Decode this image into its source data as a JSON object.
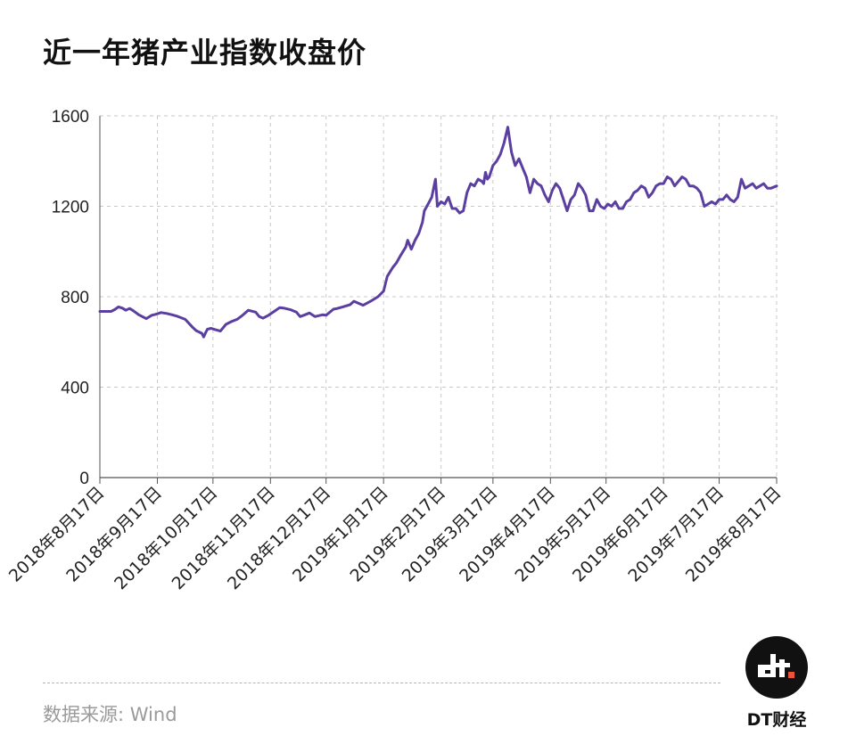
{
  "title": "近一年猪产业指数收盘价",
  "source": "数据来源: Wind",
  "brand": {
    "name": "DT财经",
    "logo_text": "dt"
  },
  "colors": {
    "line": "#5b3fa0",
    "grid": "#c9c9c9",
    "axis": "#555555",
    "logo_bg": "#111111",
    "logo_dot": "#e8543b"
  },
  "chart_data": {
    "type": "line",
    "title": "近一年猪产业指数收盘价",
    "xlabel": "",
    "ylabel": "",
    "ylim": [
      0,
      1600
    ],
    "yticks": [
      0,
      400,
      800,
      1200,
      1600
    ],
    "xlim": [
      0,
      365
    ],
    "grid": true,
    "legend": "none",
    "xtick_labels": [
      "2018年8月17日",
      "2018年9月17日",
      "2018年10月17日",
      "2018年11月17日",
      "2018年12月17日",
      "2019年1月17日",
      "2019年2月17日",
      "2019年3月17日",
      "2019年4月17日",
      "2019年5月17日",
      "2019年6月17日",
      "2019年7月17日",
      "2019年8月17日"
    ],
    "xtick_days": [
      0,
      31,
      61,
      92,
      122,
      153,
      184,
      212,
      243,
      273,
      304,
      334,
      365
    ],
    "series": [
      {
        "name": "",
        "x": [
          0,
          6,
          8,
          10,
          12,
          14,
          16,
          18,
          21,
          25,
          28,
          30,
          33,
          36,
          39,
          42,
          46,
          50,
          52,
          55,
          56,
          57,
          58,
          60,
          62,
          65,
          68,
          71,
          74,
          77,
          80,
          84,
          86,
          88,
          91,
          94,
          97,
          99,
          103,
          106,
          108,
          110,
          113,
          116,
          120,
          122,
          126,
          128,
          131,
          135,
          137,
          139,
          142,
          146,
          150,
          153,
          155,
          158,
          160,
          162,
          165,
          166,
          168,
          170,
          172,
          174,
          175,
          177,
          179,
          181,
          182,
          184,
          186,
          188,
          190,
          192,
          194,
          196,
          198,
          200,
          202,
          204,
          206,
          207,
          208,
          209,
          210,
          212,
          214,
          216,
          218,
          220,
          222,
          224,
          226,
          228,
          230,
          232,
          234,
          236,
          238,
          240,
          242,
          244,
          246,
          248,
          250,
          252,
          254,
          256,
          258,
          260,
          262,
          264,
          266,
          268,
          270,
          272,
          274,
          276,
          278,
          280,
          282,
          284,
          286,
          288,
          290,
          292,
          294,
          296,
          298,
          300,
          302,
          304,
          306,
          308,
          310,
          312,
          314,
          316,
          318,
          320,
          322,
          324,
          326,
          328,
          330,
          332,
          334,
          336,
          338,
          340,
          342,
          344,
          346,
          348,
          350,
          352,
          354,
          356,
          358,
          360,
          362,
          365
        ],
        "y": [
          735,
          735,
          743,
          755,
          750,
          740,
          748,
          738,
          720,
          703,
          718,
          722,
          730,
          726,
          720,
          713,
          700,
          665,
          650,
          638,
          622,
          640,
          656,
          660,
          655,
          648,
          678,
          690,
          700,
          718,
          740,
          732,
          712,
          705,
          718,
          735,
          752,
          750,
          742,
          732,
          712,
          718,
          728,
          712,
          720,
          718,
          745,
          748,
          755,
          765,
          780,
          773,
          762,
          780,
          800,
          825,
          890,
          930,
          950,
          980,
          1020,
          1050,
          1010,
          1050,
          1080,
          1130,
          1180,
          1210,
          1240,
          1320,
          1200,
          1220,
          1210,
          1240,
          1190,
          1190,
          1170,
          1180,
          1260,
          1300,
          1290,
          1320,
          1310,
          1300,
          1350,
          1320,
          1330,
          1380,
          1400,
          1430,
          1480,
          1550,
          1440,
          1380,
          1410,
          1370,
          1330,
          1260,
          1320,
          1300,
          1290,
          1250,
          1220,
          1270,
          1300,
          1280,
          1230,
          1180,
          1230,
          1250,
          1300,
          1280,
          1250,
          1180,
          1180,
          1230,
          1200,
          1190,
          1210,
          1200,
          1220,
          1190,
          1190,
          1220,
          1230,
          1260,
          1270,
          1290,
          1280,
          1240,
          1260,
          1290,
          1300,
          1300,
          1330,
          1320,
          1290,
          1310,
          1330,
          1320,
          1290,
          1290,
          1280,
          1260,
          1200,
          1210,
          1220,
          1210,
          1230,
          1230,
          1250,
          1230,
          1220,
          1240,
          1320,
          1280,
          1290,
          1300,
          1280,
          1290,
          1300,
          1280,
          1280,
          1290
        ]
      }
    ]
  }
}
